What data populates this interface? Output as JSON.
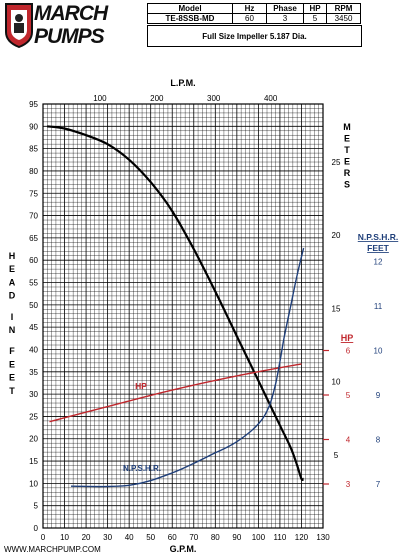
{
  "brand": {
    "name_line1": "MARCH",
    "name_line2": "PUMPS",
    "colors": {
      "red": "#c0272d",
      "dark": "#222222"
    }
  },
  "specs": {
    "headers": [
      "Model",
      "Hz",
      "Phase",
      "HP",
      "RPM"
    ],
    "values": [
      "TE-8SSB-MD",
      "60",
      "3",
      "5",
      "3450"
    ],
    "note": "Full Size Impeller 5.187 Dia."
  },
  "footer": {
    "website": "WWW.MARCHPUMP.COM"
  },
  "chart_data": {
    "type": "line",
    "x_bottom": {
      "label": "G.P.M.",
      "range": [
        0,
        130
      ],
      "ticks": [
        0,
        10,
        20,
        30,
        40,
        50,
        60,
        70,
        80,
        90,
        100,
        110,
        120,
        130
      ]
    },
    "x_top": {
      "label": "L.P.M.",
      "ticks": [
        100,
        200,
        300,
        400
      ]
    },
    "y_left": {
      "label": "HEAD IN FEET",
      "range": [
        0,
        95
      ],
      "ticks": [
        0,
        5,
        10,
        15,
        20,
        25,
        30,
        35,
        40,
        45,
        50,
        55,
        60,
        65,
        70,
        75,
        80,
        85,
        90,
        95
      ]
    },
    "y_right_meters": {
      "label": "METERS",
      "ticks": [
        5,
        10,
        15,
        20,
        25
      ]
    },
    "y_right_hp": {
      "label": "HP",
      "ticks": [
        3,
        4,
        5,
        6
      ]
    },
    "y_right_npshr": {
      "label": "N.P.S.H.R. FEET",
      "ticks": [
        7,
        8,
        9,
        10,
        11,
        12
      ]
    },
    "grid": true,
    "series": [
      {
        "name": "HEAD",
        "color": "#000000",
        "x": [
          2,
          10,
          20,
          30,
          40,
          50,
          60,
          70,
          80,
          90,
          100,
          110,
          115,
          118,
          120,
          121
        ],
        "y": [
          90,
          89.5,
          88,
          86,
          82.5,
          77.5,
          71,
          62.5,
          53,
          43,
          33,
          23,
          18,
          14,
          11,
          11
        ]
      },
      {
        "name": "HP",
        "color": "#c0272d",
        "label": "HP",
        "x": [
          3,
          30,
          60,
          90,
          120
        ],
        "y": [
          4.4,
          4.74,
          5.11,
          5.43,
          5.7
        ]
      },
      {
        "name": "N.P.S.H.R.",
        "color": "#1f3f7a",
        "label": "N.P.S.H.R.",
        "x": [
          13,
          40,
          60,
          80,
          90,
          100,
          105,
          108,
          110,
          112,
          115,
          118,
          121
        ],
        "y": [
          6.95,
          6.97,
          7.25,
          7.7,
          7.95,
          8.35,
          8.75,
          9.25,
          9.75,
          10.3,
          11.0,
          11.7,
          12.3
        ]
      }
    ]
  }
}
